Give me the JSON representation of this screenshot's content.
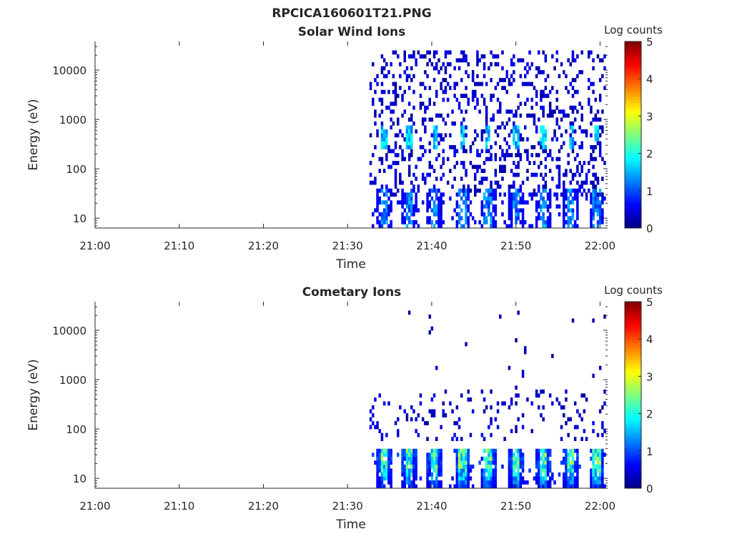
{
  "chart_data": {
    "type": "heatmap",
    "title": "RPCICA160601T21.PNG",
    "time_ticks": [
      "21:00",
      "21:10",
      "21:20",
      "21:30",
      "21:40",
      "21:50",
      "22:00"
    ],
    "xlim_minutes_after_21": [
      0,
      60.9
    ],
    "energy_ticks": [
      10,
      100,
      1000,
      10000
    ],
    "energy_tick_labels": [
      "10",
      "100",
      "1000",
      "10000"
    ],
    "ylim_eV": [
      6.3,
      38000
    ],
    "data_start_minutes": 32.6,
    "data_end_minutes": 60.6,
    "sweep_peak_minutes": [
      34.2,
      37.2,
      40.2,
      43.5,
      46.6,
      49.9,
      53.1,
      56.4,
      59.5
    ],
    "panels": [
      {
        "title": "Solar Wind Ions",
        "xlabel": "Time",
        "ylabel": "Energy (eV)",
        "colorbar": {
          "label": "Log counts",
          "range": [
            0,
            5
          ],
          "ticks": [
            "0",
            "1",
            "2",
            "3",
            "4",
            "5"
          ]
        },
        "components": [
          {
            "kind": "background",
            "energy_eV": [
              30,
              25000
            ],
            "occupancy": 0.22,
            "log_counts": [
              0.1,
              0.6
            ]
          },
          {
            "kind": "low-energy",
            "energy_eV": [
              6.3,
              40
            ],
            "occupancy": 0.7,
            "log_counts": [
              0.3,
              1.6
            ]
          },
          {
            "kind": "solar-wind-peak",
            "energy_eV": [
              250,
              700
            ],
            "occupancy": 0.8,
            "log_counts": [
              0.6,
              2.0
            ]
          }
        ]
      },
      {
        "title": "Cometary Ions",
        "xlabel": "Time",
        "ylabel": "Energy (eV)",
        "colorbar": {
          "label": "Log counts",
          "range": [
            0,
            5
          ],
          "ticks": [
            "0",
            "1",
            "2",
            "3",
            "4",
            "5"
          ]
        },
        "components": [
          {
            "kind": "background",
            "energy_eV": [
              60,
              600
            ],
            "occupancy": 0.12,
            "log_counts": [
              0.1,
              0.6
            ]
          },
          {
            "kind": "sparse-high",
            "energy_eV": [
              600,
              25000
            ],
            "occupancy": 0.01,
            "log_counts": [
              0.1,
              0.4
            ]
          },
          {
            "kind": "low-energy",
            "energy_eV": [
              6.3,
              38
            ],
            "occupancy": 0.9,
            "log_counts": [
              0.3,
              2.9
            ]
          }
        ]
      }
    ]
  }
}
